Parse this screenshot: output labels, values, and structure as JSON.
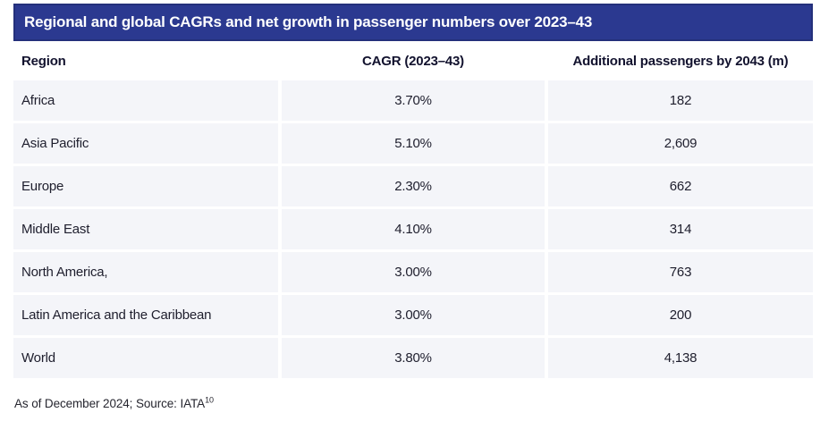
{
  "title": "Regional and global CAGRs and net growth in passenger numbers over 2023–43",
  "table": {
    "columns": [
      "Region",
      "CAGR (2023–43)",
      "Additional passengers by 2043 (m)"
    ],
    "rows": [
      {
        "region": "Africa",
        "cagr": "3.70%",
        "passengers": "182"
      },
      {
        "region": "Asia Pacific",
        "cagr": "5.10%",
        "passengers": "2,609"
      },
      {
        "region": "Europe",
        "cagr": "2.30%",
        "passengers": "662"
      },
      {
        "region": "Middle East",
        "cagr": "4.10%",
        "passengers": "314"
      },
      {
        "region": "North America,",
        "cagr": "3.00%",
        "passengers": "763"
      },
      {
        "region": "Latin America and the Caribbean",
        "cagr": "3.00%",
        "passengers": "200"
      },
      {
        "region": "World",
        "cagr": "3.80%",
        "passengers": "4,138"
      }
    ]
  },
  "footnote": "As of December 2024; Source: IATA",
  "footnote_superscript": "10",
  "colors": {
    "header_bar": "#2b3990",
    "header_bar_border": "#24307b",
    "title_text": "#ffffff",
    "column_header_text": "#12122e",
    "body_text": "#1e1e2d",
    "row_background": "#f4f5f9",
    "page_background": "#ffffff"
  },
  "chart_data": {
    "type": "table",
    "title": "Regional and global CAGRs and net growth in passenger numbers over 2023–43",
    "columns": [
      "Region",
      "CAGR (2023–43)",
      "Additional passengers by 2043 (m)"
    ],
    "categories": [
      "Africa",
      "Asia Pacific",
      "Europe",
      "Middle East",
      "North America,",
      "Latin America and the Caribbean",
      "World"
    ],
    "series": [
      {
        "name": "CAGR (2023–43) %",
        "values": [
          3.7,
          5.1,
          2.3,
          4.1,
          3.0,
          3.0,
          3.8
        ]
      },
      {
        "name": "Additional passengers by 2043 (m)",
        "values": [
          182,
          2609,
          662,
          314,
          763,
          200,
          4138
        ]
      }
    ],
    "source_note": "As of December 2024; Source: IATA (footnote 10)"
  }
}
